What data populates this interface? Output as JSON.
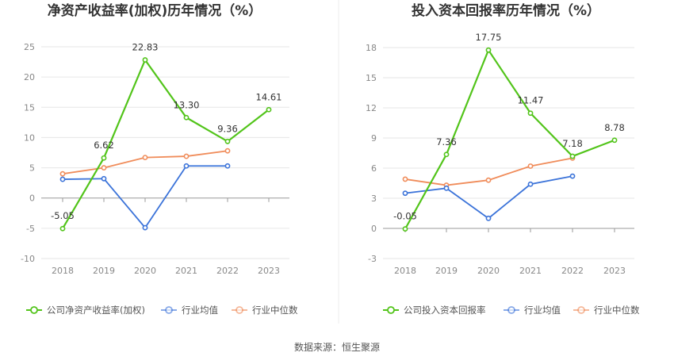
{
  "colors": {
    "company": "#52c41a",
    "industry_avg": "#3b73d9",
    "industry_median": "#f08c5a",
    "grid": "#e6e6e6",
    "axis": "#999999"
  },
  "source_label": "数据来源：恒生聚源",
  "chart_data": [
    {
      "type": "line",
      "title": "净资产收益率(加权)历年情况（%）",
      "categories": [
        "2018",
        "2019",
        "2020",
        "2021",
        "2022",
        "2023"
      ],
      "ylim": [
        -10,
        25
      ],
      "yticks": [
        -10,
        -5,
        0,
        5,
        10,
        15,
        20,
        25
      ],
      "ytick_labels": [
        "-10",
        "-5",
        "0",
        "5",
        "10",
        "15",
        "20",
        "25"
      ],
      "grid": true,
      "legend_position": "bottom",
      "series": [
        {
          "name": "公司净资产收益率(加权)",
          "color_key": "company",
          "values": [
            -5.05,
            6.62,
            22.83,
            13.3,
            9.36,
            14.61
          ],
          "labels": [
            "-5.05",
            "6.62",
            "22.83",
            "13.30",
            "9.36",
            "14.61"
          ]
        },
        {
          "name": "行业均值",
          "color_key": "industry_avg",
          "values": [
            3.1,
            3.2,
            -4.9,
            5.3,
            5.3,
            null
          ]
        },
        {
          "name": "行业中位数",
          "color_key": "industry_median",
          "values": [
            4.0,
            5.0,
            6.7,
            6.9,
            7.8,
            null
          ]
        }
      ]
    },
    {
      "type": "line",
      "title": "投入资本回报率历年情况（%）",
      "categories": [
        "2018",
        "2019",
        "2020",
        "2021",
        "2022",
        "2023"
      ],
      "ylim": [
        -3,
        18
      ],
      "yticks": [
        -3,
        0,
        3,
        6,
        9,
        12,
        15,
        18
      ],
      "ytick_labels": [
        "-3",
        "0",
        "3",
        "6",
        "9",
        "12",
        "15",
        "18"
      ],
      "grid": true,
      "legend_position": "bottom",
      "series": [
        {
          "name": "公司投入资本回报率",
          "color_key": "company",
          "values": [
            -0.05,
            7.36,
            17.75,
            11.47,
            7.18,
            8.78
          ],
          "labels": [
            "-0.05",
            "7.36",
            "17.75",
            "11.47",
            "7.18",
            "8.78"
          ]
        },
        {
          "name": "行业均值",
          "color_key": "industry_avg",
          "values": [
            3.5,
            4.0,
            1.0,
            4.4,
            5.2,
            null
          ]
        },
        {
          "name": "行业中位数",
          "color_key": "industry_median",
          "values": [
            4.9,
            4.3,
            4.8,
            6.2,
            7.0,
            null
          ]
        }
      ]
    }
  ]
}
